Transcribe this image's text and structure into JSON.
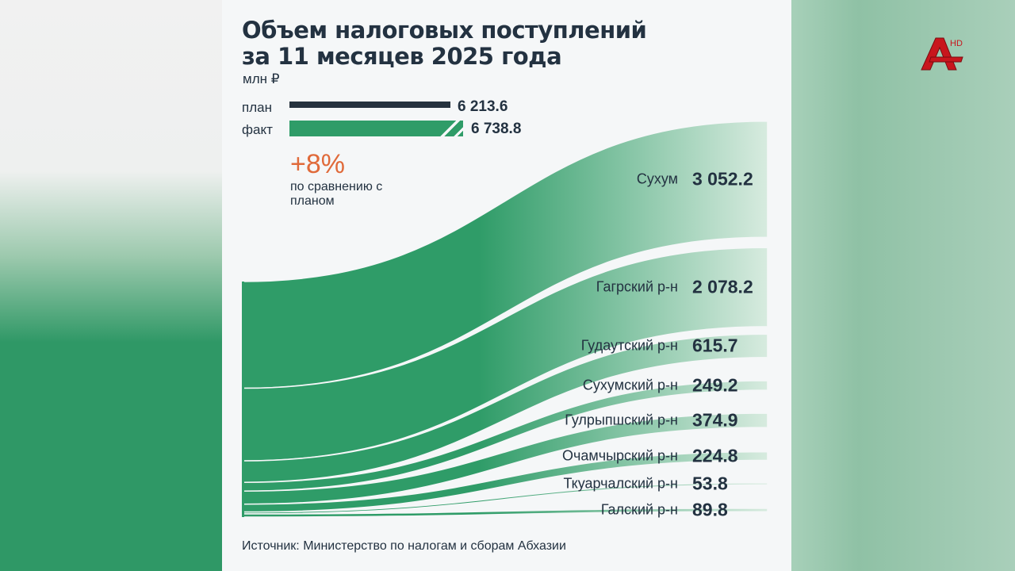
{
  "chart_data": {
    "type": "sankey",
    "title": "Объем налоговых поступлений за 11 месяцев 2025 года",
    "title_lines": [
      "Объем налоговых поступлений",
      "за 11 месяцев 2025 года"
    ],
    "unit": "млн ₽",
    "legend": {
      "plan_label": "план",
      "plan_value": "6 213.6",
      "fact_label": "факт",
      "fact_value": "6 738.8"
    },
    "plan": 6213.6,
    "fact": 6738.8,
    "change": {
      "value": "+8%",
      "note": "по сравнению с планом"
    },
    "categories": [
      "Сухум",
      "Гагрский р-н",
      "Гудаутский р-н",
      "Сухумский р-н",
      "Гулрыпшский р-н",
      "Очамчырский р-н",
      "Ткуарчалский р-н",
      "Галский р-н"
    ],
    "values": [
      3052.2,
      2078.2,
      615.7,
      249.2,
      374.9,
      224.8,
      53.8,
      89.8
    ],
    "value_labels": [
      "3 052.2",
      "2 078.2",
      "615.7",
      "249.2",
      "374.9",
      "224.8",
      "53.8",
      "89.8"
    ],
    "source": "Источник: Министерство по налогам и сборам Абхазии",
    "colors": {
      "flow": "#2f9c68",
      "plan_bar": "#26323e",
      "accent": "#e06a3a",
      "text": "#233241"
    }
  },
  "logo": {
    "text": "A",
    "badge": "HD",
    "color": "#c8161d"
  }
}
